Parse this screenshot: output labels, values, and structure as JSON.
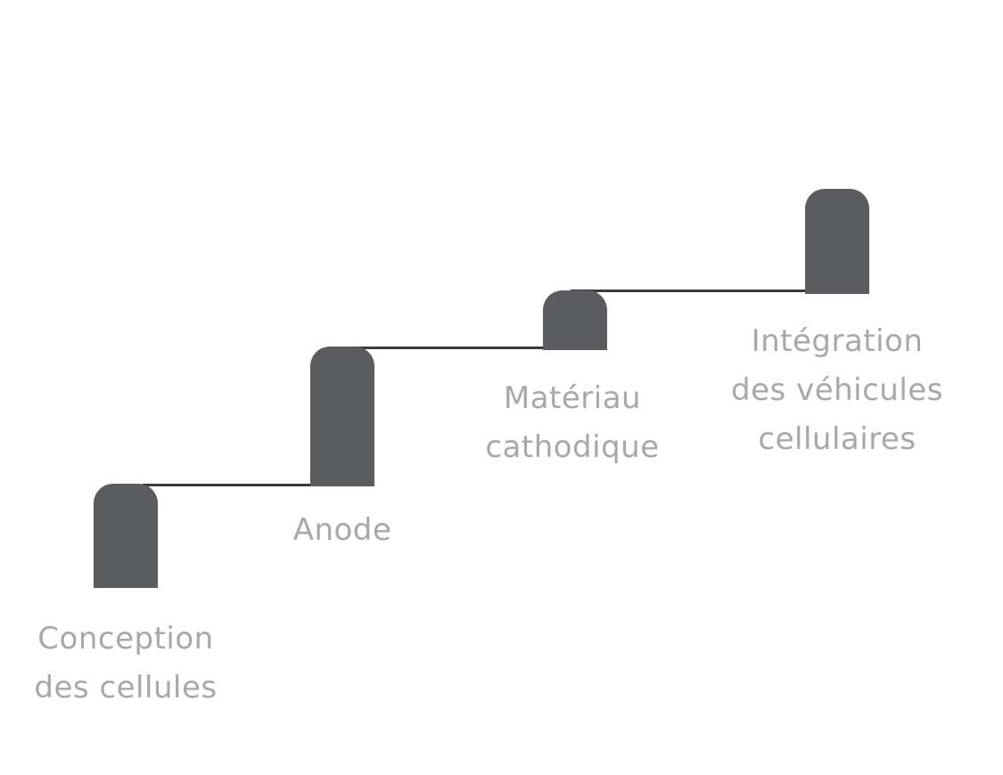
{
  "colors": {
    "pillar": "#5b5c60",
    "connector": "#3a3a3e",
    "label": "#a8a8a8",
    "background": "#ffffff"
  },
  "steps": [
    {
      "lines": [
        "Conception",
        "des cellules"
      ]
    },
    {
      "lines": [
        "Anode"
      ]
    },
    {
      "lines": [
        "Matériau",
        "cathodique"
      ]
    },
    {
      "lines": [
        "Intégration",
        "des véhicules",
        "cellulaires"
      ]
    }
  ]
}
